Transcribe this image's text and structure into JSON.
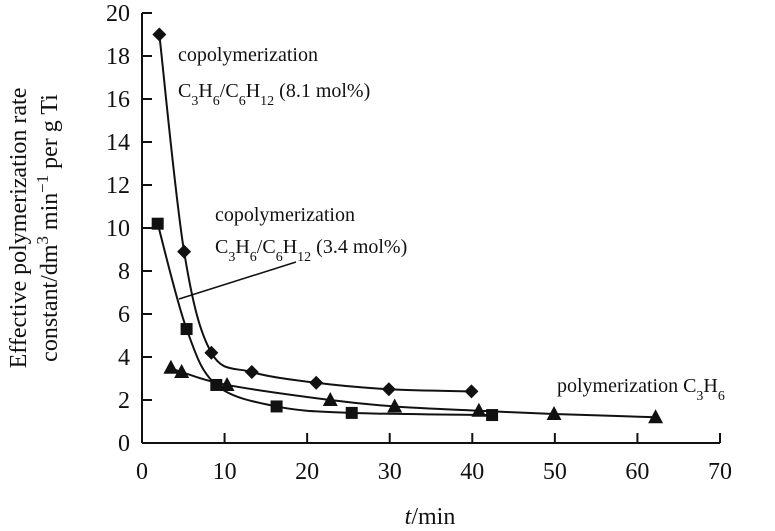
{
  "chart_data": {
    "type": "line",
    "title": "",
    "xlabel": {
      "italic": "t",
      "rest": "/min"
    },
    "ylabel": {
      "line1": "Effective polymerization rate",
      "line2_parts": [
        {
          "t": "constant/dm",
          "s": ""
        },
        {
          "t": "3",
          "s": "sup"
        },
        {
          "t": " min",
          "s": ""
        },
        {
          "t": "−1",
          "s": "sup"
        },
        {
          "t": " per g Ti",
          "s": ""
        }
      ]
    },
    "xlim": [
      0,
      70
    ],
    "ylim": [
      0,
      20
    ],
    "xticks": [
      0,
      10,
      20,
      30,
      40,
      50,
      60,
      70
    ],
    "yticks": [
      0,
      2,
      4,
      6,
      8,
      10,
      12,
      14,
      16,
      18,
      20
    ],
    "grid": false,
    "series": [
      {
        "name": "copolymerization C3H6/C6H12 (8.1 mol%)",
        "marker": "diamond",
        "x": [
          2.1,
          5.1,
          8.4,
          13.3,
          21.1,
          29.9,
          39.9
        ],
        "y": [
          19.0,
          8.9,
          4.2,
          3.3,
          2.8,
          2.5,
          2.4
        ]
      },
      {
        "name": "copolymerization C3H6/C6H12 (3.4 mol%)",
        "marker": "square",
        "x": [
          1.9,
          5.4,
          9.0,
          16.3,
          25.4,
          42.4
        ],
        "y": [
          10.2,
          5.3,
          2.7,
          1.7,
          1.4,
          1.3
        ]
      },
      {
        "name": "polymerization C3H6",
        "marker": "triangle",
        "x": [
          3.5,
          4.8,
          10.3,
          22.8,
          30.6,
          40.8,
          49.9,
          62.2
        ],
        "y": [
          3.5,
          3.3,
          2.7,
          2.0,
          1.7,
          1.5,
          1.35,
          1.2
        ]
      }
    ],
    "annotations": [
      {
        "line1": "copolymerization",
        "parts": [
          {
            "t": "C",
            "s": ""
          },
          {
            "t": "3",
            "s": "sub"
          },
          {
            "t": "H",
            "s": ""
          },
          {
            "t": "6",
            "s": "sub"
          },
          {
            "t": "/C",
            "s": ""
          },
          {
            "t": "6",
            "s": "sub"
          },
          {
            "t": "H",
            "s": ""
          },
          {
            "t": "12",
            "s": "sub"
          },
          {
            "t": " (8.1 mol%)",
            "s": ""
          }
        ]
      },
      {
        "line1": "copolymerization",
        "parts": [
          {
            "t": "C",
            "s": ""
          },
          {
            "t": "3",
            "s": "sub"
          },
          {
            "t": "H",
            "s": ""
          },
          {
            "t": "6",
            "s": "sub"
          },
          {
            "t": "/C",
            "s": ""
          },
          {
            "t": "6",
            "s": "sub"
          },
          {
            "t": "H",
            "s": ""
          },
          {
            "t": "12",
            "s": "sub"
          },
          {
            "t": " (3.4 mol%)",
            "s": ""
          }
        ]
      },
      {
        "line1": "",
        "parts": [
          {
            "t": "polymerization C",
            "s": ""
          },
          {
            "t": "3",
            "s": "sub"
          },
          {
            "t": "H",
            "s": ""
          },
          {
            "t": "6",
            "s": "sub"
          }
        ]
      }
    ]
  }
}
